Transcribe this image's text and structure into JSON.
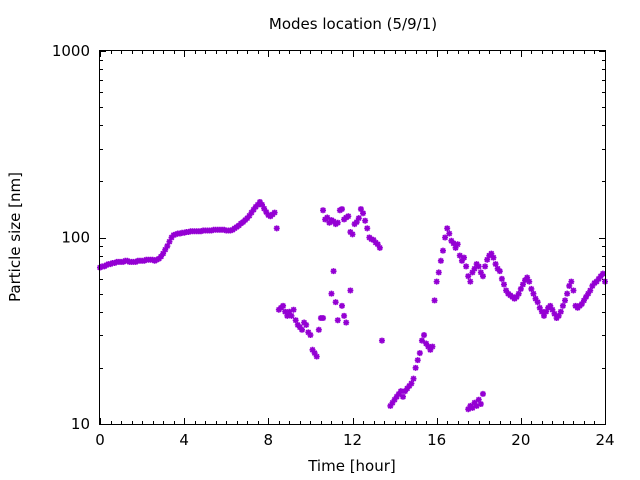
{
  "chart_data": {
    "type": "scatter",
    "title": "Modes location (5/9/1)",
    "xlabel": "Time [hour]",
    "ylabel": "Particle size [nm]",
    "xlim": [
      0,
      24
    ],
    "ylim": [
      10,
      1000
    ],
    "y_scale": "log",
    "grid": false,
    "marker_color": "#9400d3",
    "x_ticks": [
      0,
      4,
      8,
      12,
      16,
      20,
      24
    ],
    "x_tick_labels": [
      "0",
      "4",
      "8",
      "12",
      "16",
      "20",
      "24"
    ],
    "y_ticks": [
      10,
      100,
      1000
    ],
    "y_tick_labels": [
      "10",
      "100",
      "1000"
    ],
    "series": [
      {
        "points": [
          [
            0.0,
            69
          ],
          [
            0.1,
            70
          ],
          [
            0.2,
            70
          ],
          [
            0.3,
            71
          ],
          [
            0.4,
            72
          ],
          [
            0.5,
            72
          ],
          [
            0.6,
            73
          ],
          [
            0.7,
            73
          ],
          [
            0.8,
            74
          ],
          [
            0.9,
            74
          ],
          [
            1.0,
            74
          ],
          [
            1.1,
            74
          ],
          [
            1.2,
            75
          ],
          [
            1.3,
            75
          ],
          [
            1.4,
            74
          ],
          [
            1.5,
            74
          ],
          [
            1.6,
            74
          ],
          [
            1.7,
            74
          ],
          [
            1.8,
            75
          ],
          [
            1.9,
            75
          ],
          [
            2.0,
            75
          ],
          [
            2.1,
            75
          ],
          [
            2.2,
            76
          ],
          [
            2.3,
            76
          ],
          [
            2.4,
            76
          ],
          [
            2.5,
            76
          ],
          [
            2.6,
            75
          ],
          [
            2.7,
            76
          ],
          [
            2.8,
            77
          ],
          [
            2.9,
            79
          ],
          [
            3.0,
            82
          ],
          [
            3.1,
            86
          ],
          [
            3.2,
            90
          ],
          [
            3.3,
            95
          ],
          [
            3.4,
            100
          ],
          [
            3.5,
            103
          ],
          [
            3.6,
            104
          ],
          [
            3.7,
            105
          ],
          [
            3.8,
            105
          ],
          [
            3.9,
            106
          ],
          [
            4.0,
            106
          ],
          [
            4.1,
            107
          ],
          [
            4.2,
            107
          ],
          [
            4.3,
            108
          ],
          [
            4.4,
            108
          ],
          [
            4.5,
            108
          ],
          [
            4.6,
            108
          ],
          [
            4.7,
            108
          ],
          [
            4.8,
            108
          ],
          [
            4.9,
            109
          ],
          [
            5.0,
            109
          ],
          [
            5.1,
            109
          ],
          [
            5.2,
            109
          ],
          [
            5.3,
            109
          ],
          [
            5.4,
            110
          ],
          [
            5.5,
            110
          ],
          [
            5.6,
            110
          ],
          [
            5.7,
            110
          ],
          [
            5.8,
            110
          ],
          [
            5.9,
            110
          ],
          [
            6.0,
            109
          ],
          [
            6.1,
            109
          ],
          [
            6.2,
            109
          ],
          [
            6.3,
            110
          ],
          [
            6.4,
            112
          ],
          [
            6.5,
            114
          ],
          [
            6.6,
            116
          ],
          [
            6.7,
            119
          ],
          [
            6.8,
            121
          ],
          [
            6.9,
            124
          ],
          [
            7.0,
            127
          ],
          [
            7.1,
            131
          ],
          [
            7.2,
            136
          ],
          [
            7.3,
            141
          ],
          [
            7.4,
            146
          ],
          [
            7.5,
            150
          ],
          [
            7.6,
            155
          ],
          [
            7.7,
            150
          ],
          [
            7.8,
            143
          ],
          [
            7.9,
            137
          ],
          [
            8.0,
            132
          ],
          [
            8.1,
            130
          ],
          [
            8.2,
            133
          ],
          [
            8.3,
            136
          ],
          [
            8.4,
            112
          ],
          [
            8.5,
            41
          ],
          [
            8.6,
            42
          ],
          [
            8.7,
            43
          ],
          [
            8.8,
            40
          ],
          [
            8.9,
            38
          ],
          [
            9.0,
            40
          ],
          [
            9.1,
            38
          ],
          [
            9.2,
            41
          ],
          [
            9.3,
            36
          ],
          [
            9.4,
            34
          ],
          [
            9.5,
            33
          ],
          [
            9.6,
            32
          ],
          [
            9.7,
            35
          ],
          [
            9.8,
            34
          ],
          [
            9.9,
            31
          ],
          [
            10.0,
            30
          ],
          [
            10.1,
            25
          ],
          [
            10.2,
            24
          ],
          [
            10.3,
            23
          ],
          [
            10.4,
            32
          ],
          [
            10.5,
            37
          ],
          [
            10.6,
            140
          ],
          [
            10.7,
            125
          ],
          [
            10.8,
            128
          ],
          [
            10.9,
            120
          ],
          [
            11.0,
            124
          ],
          [
            11.1,
            122
          ],
          [
            11.2,
            118
          ],
          [
            11.3,
            120
          ],
          [
            11.4,
            140
          ],
          [
            11.5,
            142
          ],
          [
            11.6,
            125
          ],
          [
            11.7,
            128
          ],
          [
            11.8,
            130
          ],
          [
            11.9,
            107
          ],
          [
            12.0,
            104
          ],
          [
            12.1,
            118
          ],
          [
            12.2,
            121
          ],
          [
            12.3,
            127
          ],
          [
            12.4,
            142
          ],
          [
            12.5,
            135
          ],
          [
            12.6,
            123
          ],
          [
            12.7,
            112
          ],
          [
            12.8,
            100
          ],
          [
            12.9,
            98
          ],
          [
            13.0,
            97
          ],
          [
            13.1,
            94
          ],
          [
            13.2,
            92
          ],
          [
            13.3,
            88
          ],
          [
            10.6,
            37
          ],
          [
            11.0,
            50
          ],
          [
            11.1,
            66
          ],
          [
            11.2,
            45
          ],
          [
            11.3,
            36
          ],
          [
            11.5,
            43
          ],
          [
            11.6,
            38
          ],
          [
            11.7,
            35
          ],
          [
            11.9,
            52
          ],
          [
            13.4,
            28
          ],
          [
            13.8,
            12.5
          ],
          [
            13.9,
            13
          ],
          [
            14.0,
            13.5
          ],
          [
            14.1,
            14
          ],
          [
            14.2,
            14.5
          ],
          [
            14.3,
            15
          ],
          [
            14.4,
            14
          ],
          [
            14.5,
            15
          ],
          [
            14.6,
            15.5
          ],
          [
            14.7,
            16
          ],
          [
            14.8,
            16.5
          ],
          [
            14.9,
            17.5
          ],
          [
            15.0,
            20
          ],
          [
            15.1,
            22
          ],
          [
            15.2,
            24
          ],
          [
            15.3,
            28
          ],
          [
            15.4,
            30
          ],
          [
            15.5,
            27
          ],
          [
            15.6,
            26
          ],
          [
            15.7,
            25
          ],
          [
            15.8,
            26
          ],
          [
            15.9,
            46
          ],
          [
            16.0,
            58
          ],
          [
            16.1,
            65
          ],
          [
            16.2,
            75
          ],
          [
            16.3,
            85
          ],
          [
            16.4,
            100
          ],
          [
            16.5,
            112
          ],
          [
            16.6,
            105
          ],
          [
            16.7,
            96
          ],
          [
            16.8,
            93
          ],
          [
            16.9,
            88
          ],
          [
            17.0,
            92
          ],
          [
            17.1,
            80
          ],
          [
            17.2,
            75
          ],
          [
            17.3,
            78
          ],
          [
            17.4,
            70
          ],
          [
            17.5,
            62
          ],
          [
            17.6,
            58
          ],
          [
            17.7,
            65
          ],
          [
            17.8,
            68
          ],
          [
            17.9,
            72
          ],
          [
            18.0,
            70
          ],
          [
            18.1,
            65
          ],
          [
            18.2,
            62
          ],
          [
            18.3,
            70
          ],
          [
            18.4,
            76
          ],
          [
            18.5,
            80
          ],
          [
            18.6,
            82
          ],
          [
            18.7,
            78
          ],
          [
            18.8,
            72
          ],
          [
            18.9,
            68
          ],
          [
            19.0,
            66
          ],
          [
            19.1,
            60
          ],
          [
            19.2,
            56
          ],
          [
            19.3,
            52
          ],
          [
            19.4,
            50
          ],
          [
            19.5,
            49
          ],
          [
            19.6,
            48
          ],
          [
            19.7,
            47
          ],
          [
            19.8,
            48
          ],
          [
            19.9,
            50
          ],
          [
            20.0,
            53
          ],
          [
            20.1,
            56
          ],
          [
            20.2,
            59
          ],
          [
            20.3,
            61
          ],
          [
            20.4,
            58
          ],
          [
            20.5,
            53
          ],
          [
            20.6,
            50
          ],
          [
            20.7,
            47
          ],
          [
            20.8,
            45
          ],
          [
            20.9,
            42
          ],
          [
            21.0,
            40
          ],
          [
            21.1,
            38
          ],
          [
            21.2,
            40
          ],
          [
            21.3,
            42
          ],
          [
            21.4,
            43
          ],
          [
            21.5,
            41
          ],
          [
            21.6,
            39
          ],
          [
            21.7,
            37
          ],
          [
            21.8,
            38
          ],
          [
            21.9,
            40
          ],
          [
            22.0,
            43
          ],
          [
            22.1,
            46
          ],
          [
            22.2,
            50
          ],
          [
            22.3,
            55
          ],
          [
            22.4,
            58
          ],
          [
            22.5,
            52
          ],
          [
            22.6,
            43
          ],
          [
            22.7,
            42
          ],
          [
            22.8,
            43
          ],
          [
            22.9,
            44
          ],
          [
            23.0,
            46
          ],
          [
            23.1,
            48
          ],
          [
            23.2,
            50
          ],
          [
            23.3,
            52
          ],
          [
            23.4,
            55
          ],
          [
            23.5,
            57
          ],
          [
            23.6,
            58
          ],
          [
            23.7,
            60
          ],
          [
            23.8,
            62
          ],
          [
            23.9,
            64
          ],
          [
            24.0,
            58
          ],
          [
            17.5,
            12
          ],
          [
            17.6,
            12.5
          ],
          [
            17.7,
            12.2
          ],
          [
            17.8,
            13
          ],
          [
            17.9,
            12.5
          ],
          [
            18.0,
            13.5
          ],
          [
            18.1,
            12.8
          ],
          [
            18.2,
            14.5
          ]
        ]
      }
    ]
  }
}
